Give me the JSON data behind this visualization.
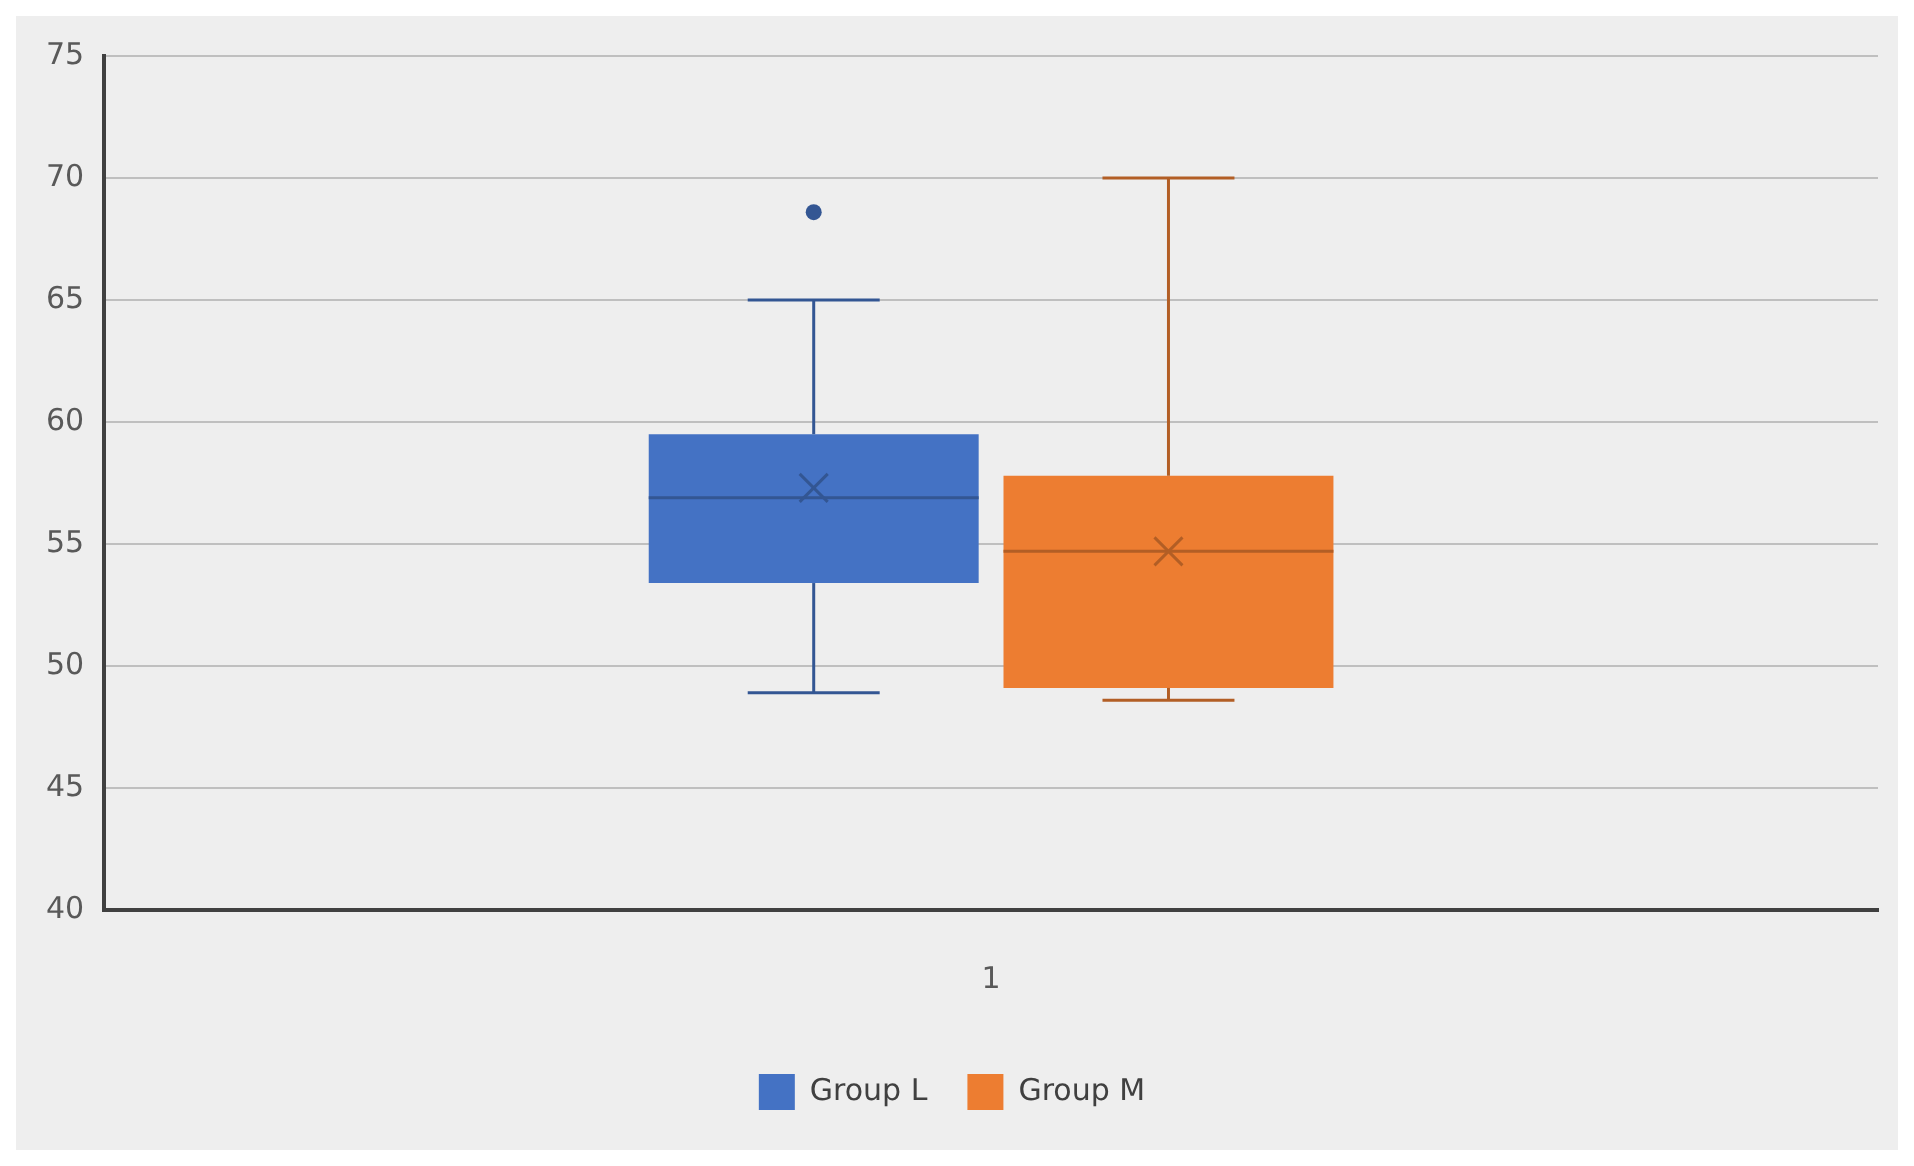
{
  "chart_data": {
    "type": "box",
    "categories": [
      "1"
    ],
    "series": [
      {
        "name": "Group L",
        "color": "#4472c4",
        "boxes": [
          {
            "low": 48.9,
            "q1": 53.4,
            "median": 56.9,
            "q3": 59.5,
            "high": 65,
            "mean": 57.3,
            "outliers": [
              68.6
            ]
          }
        ]
      },
      {
        "name": "Group M",
        "color": "#ed7d31",
        "boxes": [
          {
            "low": 48.6,
            "q1": 49.1,
            "median": 54.7,
            "q3": 57.8,
            "high": 70,
            "mean": 54.7
          }
        ]
      }
    ],
    "ylim": [
      40,
      75
    ],
    "yticks": [
      40,
      45,
      50,
      55,
      60,
      65,
      70,
      75
    ],
    "grid": "y",
    "legend": "bottom"
  }
}
